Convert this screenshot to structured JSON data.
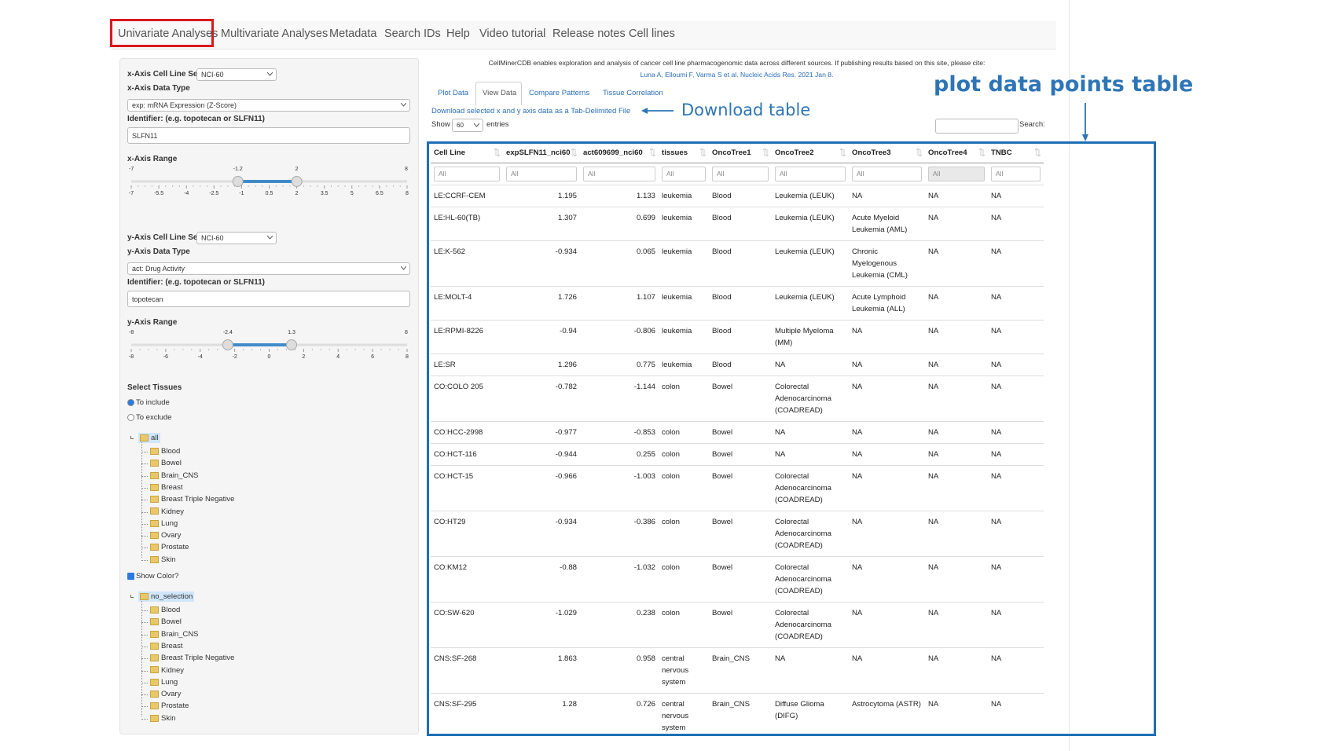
{
  "nav": {
    "tabs": [
      "Univariate Analyses",
      "Multivariate Analyses",
      "Metadata",
      "Search IDs",
      "Help",
      "Video tutorial",
      "Release notes",
      "Cell lines"
    ]
  },
  "sidebar": {
    "x_axis": {
      "cell_line_set_label": "x-Axis Cell Line Set",
      "cell_line_set": "NCI-60",
      "data_type_label": "x-Axis Data Type",
      "data_type": "exp: mRNA Expression (Z-Score)",
      "identifier_label": "Identifier: (e.g. topotecan or SLFN11)",
      "identifier": "SLFN11",
      "range_label": "x-Axis Range",
      "range": {
        "min": -7,
        "max": 8,
        "from": -1.2,
        "to": 2,
        "ticks": [
          -7,
          -5.5,
          -4,
          -2.5,
          -1,
          0.5,
          2,
          3.5,
          5,
          6.5,
          8
        ]
      }
    },
    "y_axis": {
      "cell_line_set_label": "y-Axis Cell Line Set",
      "cell_line_set": "NCI-60",
      "data_type_label": "y-Axis Data Type",
      "data_type": "act: Drug Activity",
      "identifier_label": "Identifier: (e.g. topotecan or SLFN11)",
      "identifier": "topotecan",
      "range_label": "y-Axis Range",
      "range": {
        "min": -8,
        "max": 8,
        "from": -2.4,
        "to": 1.3,
        "ticks": [
          -8,
          -6,
          -4,
          -2,
          0,
          2,
          4,
          6,
          8
        ]
      }
    },
    "select_tissues_label": "Select Tissues",
    "options": [
      "To include",
      "To exclude"
    ],
    "tissue_tree": {
      "root": "all",
      "items": [
        "Blood",
        "Bowel",
        "Brain_CNS",
        "Breast",
        "Breast Triple Negative",
        "Kidney",
        "Lung",
        "Ovary",
        "Prostate",
        "Skin"
      ]
    },
    "show_color_label": "Show Color?",
    "color_tree": {
      "root": "no_selection",
      "items": [
        "Blood",
        "Bowel",
        "Brain_CNS",
        "Breast",
        "Breast Triple Negative",
        "Kidney",
        "Lung",
        "Ovary",
        "Prostate",
        "Skin"
      ]
    }
  },
  "main": {
    "citation": "CellMinerCDB enables exploration and analysis of cancer cell line pharmacogenomic data across different sources. If publishing results based on this site, please cite:",
    "citation_link": "Luna A, Elloumi F, Varma S et al. Nucleic Acids Res. 2021 Jan 8.",
    "subtabs": [
      "Plot Data",
      "View Data",
      "Compare Patterns",
      "Tissue Correlation"
    ],
    "download_link": "Download selected x and y axis data as a Tab-Delimited File",
    "show_label": "Show",
    "page_length": "60",
    "entries_label": "entries",
    "search_label": "Search:"
  },
  "table": {
    "columns": [
      "Cell Line",
      "expSLFN11_nci60",
      "act609699_nci60",
      "tissues",
      "OncoTree1",
      "OncoTree2",
      "OncoTree3",
      "OncoTree4",
      "TNBC"
    ],
    "filters": [
      "All",
      "All",
      "All",
      "All",
      "All",
      "All",
      "All",
      "All",
      "All"
    ],
    "rows": [
      [
        "LE:CCRF-CEM",
        "1.195",
        "1.133",
        "leukemia",
        "Blood",
        "Leukemia (LEUK)",
        "NA",
        "NA",
        "NA"
      ],
      [
        "LE:HL-60(TB)",
        "1.307",
        "0.699",
        "leukemia",
        "Blood",
        "Leukemia (LEUK)",
        "Acute Myeloid Leukemia (AML)",
        "NA",
        "NA"
      ],
      [
        "LE:K-562",
        "-0.934",
        "0.065",
        "leukemia",
        "Blood",
        "Leukemia (LEUK)",
        "Chronic Myelogenous Leukemia (CML)",
        "NA",
        "NA"
      ],
      [
        "LE:MOLT-4",
        "1.726",
        "1.107",
        "leukemia",
        "Blood",
        "Leukemia (LEUK)",
        "Acute Lymphoid Leukemia (ALL)",
        "NA",
        "NA"
      ],
      [
        "LE:RPMI-8226",
        "-0.94",
        "-0.806",
        "leukemia",
        "Blood",
        "Multiple Myeloma (MM)",
        "NA",
        "NA",
        "NA"
      ],
      [
        "LE:SR",
        "1.296",
        "0.775",
        "leukemia",
        "Blood",
        "NA",
        "NA",
        "NA",
        "NA"
      ],
      [
        "CO:COLO 205",
        "-0.782",
        "-1.144",
        "colon",
        "Bowel",
        "Colorectal Adenocarcinoma (COADREAD)",
        "NA",
        "NA",
        "NA"
      ],
      [
        "CO:HCC-2998",
        "-0.977",
        "-0.853",
        "colon",
        "Bowel",
        "NA",
        "NA",
        "NA",
        "NA"
      ],
      [
        "CO:HCT-116",
        "-0.944",
        "0.255",
        "colon",
        "Bowel",
        "NA",
        "NA",
        "NA",
        "NA"
      ],
      [
        "CO:HCT-15",
        "-0.966",
        "-1.003",
        "colon",
        "Bowel",
        "Colorectal Adenocarcinoma (COADREAD)",
        "NA",
        "NA",
        "NA"
      ],
      [
        "CO:HT29",
        "-0.934",
        "-0.386",
        "colon",
        "Bowel",
        "Colorectal Adenocarcinoma (COADREAD)",
        "NA",
        "NA",
        "NA"
      ],
      [
        "CO:KM12",
        "-0.88",
        "-1.032",
        "colon",
        "Bowel",
        "Colorectal Adenocarcinoma (COADREAD)",
        "NA",
        "NA",
        "NA"
      ],
      [
        "CO:SW-620",
        "-1.029",
        "0.238",
        "colon",
        "Bowel",
        "Colorectal Adenocarcinoma (COADREAD)",
        "NA",
        "NA",
        "NA"
      ],
      [
        "CNS:SF-268",
        "1.863",
        "0.958",
        "central nervous system",
        "Brain_CNS",
        "NA",
        "NA",
        "NA",
        "NA"
      ],
      [
        "CNS:SF-295",
        "1.28",
        "0.726",
        "central nervous system",
        "Brain_CNS",
        "Diffuse Glioma (DIFG)",
        "Astrocytoma (ASTR)",
        "NA",
        "NA"
      ]
    ]
  },
  "annotations": {
    "table_callout": "plot data points table",
    "download_callout": "Download table"
  }
}
